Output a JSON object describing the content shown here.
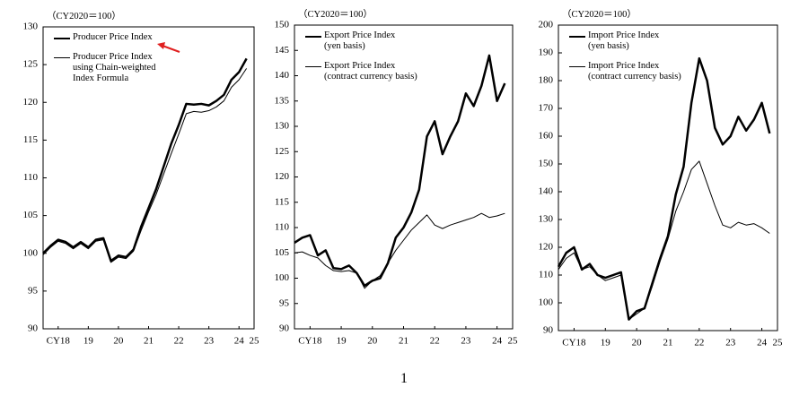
{
  "page_number": "1",
  "chart_data": [
    {
      "type": "line",
      "unit_label": "（CY2020＝100）",
      "x": [
        2018,
        2018.25,
        2018.5,
        2018.75,
        2019,
        2019.25,
        2019.5,
        2019.75,
        2020,
        2020.25,
        2020.5,
        2020.75,
        2021,
        2021.25,
        2021.5,
        2021.75,
        2022,
        2022.25,
        2022.5,
        2022.75,
        2023,
        2023.25,
        2023.5,
        2023.75,
        2024,
        2024.25,
        2024.5,
        2024.75
      ],
      "xlim": [
        2018,
        2025
      ],
      "xticks": [
        {
          "value": 2018.5,
          "label": "CY18"
        },
        {
          "value": 2019.5,
          "label": "19"
        },
        {
          "value": 2020.5,
          "label": "20"
        },
        {
          "value": 2021.5,
          "label": "21"
        },
        {
          "value": 2022.5,
          "label": "22"
        },
        {
          "value": 2023.5,
          "label": "23"
        },
        {
          "value": 2024.5,
          "label": "24"
        },
        {
          "value": 2025,
          "label": "25"
        }
      ],
      "ylim": [
        90,
        130
      ],
      "yticks": [
        90,
        95,
        100,
        105,
        110,
        115,
        120,
        125,
        130
      ],
      "series": [
        {
          "name": "Producer Price Index",
          "color": "#000000",
          "width": 2.5,
          "values": [
            100,
            101,
            101.8,
            101.5,
            100.8,
            101.5,
            100.8,
            101.8,
            102,
            99,
            99.7,
            99.5,
            100.5,
            103.5,
            106,
            108.5,
            111.5,
            114.5,
            117,
            119.8,
            119.7,
            119.8,
            119.6,
            120.2,
            121,
            123,
            124,
            125.8
          ]
        },
        {
          "name": "Producer Price Index\nusing Chain-weighted\nIndex Formula",
          "color": "#000000",
          "width": 1,
          "values": [
            99.8,
            100.8,
            101.6,
            101.3,
            100.6,
            101.3,
            100.6,
            101.6,
            101.8,
            98.8,
            99.5,
            99.3,
            100.3,
            103,
            105.5,
            107.8,
            110.5,
            113.2,
            115.8,
            118.5,
            118.8,
            118.7,
            118.9,
            119.4,
            120.2,
            122,
            123,
            124.5
          ]
        }
      ]
    },
    {
      "type": "line",
      "unit_label": "（CY2020＝100）",
      "x": [
        2018,
        2018.25,
        2018.5,
        2018.75,
        2019,
        2019.25,
        2019.5,
        2019.75,
        2020,
        2020.25,
        2020.5,
        2020.75,
        2021,
        2021.25,
        2021.5,
        2021.75,
        2022,
        2022.25,
        2022.5,
        2022.75,
        2023,
        2023.25,
        2023.5,
        2023.75,
        2024,
        2024.25,
        2024.5,
        2024.75
      ],
      "xlim": [
        2018,
        2025
      ],
      "xticks": [
        {
          "value": 2018.5,
          "label": "CY18"
        },
        {
          "value": 2019.5,
          "label": "19"
        },
        {
          "value": 2020.5,
          "label": "20"
        },
        {
          "value": 2021.5,
          "label": "21"
        },
        {
          "value": 2022.5,
          "label": "22"
        },
        {
          "value": 2023.5,
          "label": "23"
        },
        {
          "value": 2024.5,
          "label": "24"
        },
        {
          "value": 2025,
          "label": "25"
        }
      ],
      "ylim": [
        90,
        150
      ],
      "yticks": [
        90,
        95,
        100,
        105,
        110,
        115,
        120,
        125,
        130,
        135,
        140,
        145,
        150
      ],
      "series": [
        {
          "name": "Export Price Index\n(yen basis)",
          "color": "#000000",
          "width": 2.5,
          "values": [
            107,
            108,
            108.5,
            104.5,
            105.5,
            102,
            101.8,
            102.5,
            101,
            98.5,
            99.5,
            100,
            103,
            108,
            110,
            113,
            117.5,
            128,
            131,
            124.5,
            128,
            131,
            136.5,
            134,
            138,
            144,
            135,
            138.5
          ]
        },
        {
          "name": "Export Price Index\n(contract currency basis)",
          "color": "#000000",
          "width": 1,
          "values": [
            105,
            105.2,
            104.5,
            104,
            102.5,
            101.5,
            101.3,
            101.5,
            101,
            98,
            99.5,
            100.5,
            103,
            105.5,
            107.5,
            109.5,
            111,
            112.5,
            110.5,
            109.8,
            110.5,
            111,
            111.5,
            112,
            112.8,
            112,
            112.3,
            112.8
          ]
        }
      ]
    },
    {
      "type": "line",
      "unit_label": "（CY2020＝100）",
      "x": [
        2018,
        2018.25,
        2018.5,
        2018.75,
        2019,
        2019.25,
        2019.5,
        2019.75,
        2020,
        2020.25,
        2020.5,
        2020.75,
        2021,
        2021.25,
        2021.5,
        2021.75,
        2022,
        2022.25,
        2022.5,
        2022.75,
        2023,
        2023.25,
        2023.5,
        2023.75,
        2024,
        2024.25,
        2024.5,
        2024.75
      ],
      "xlim": [
        2018,
        2025
      ],
      "xticks": [
        {
          "value": 2018.5,
          "label": "CY18"
        },
        {
          "value": 2019.5,
          "label": "19"
        },
        {
          "value": 2020.5,
          "label": "20"
        },
        {
          "value": 2021.5,
          "label": "21"
        },
        {
          "value": 2022.5,
          "label": "22"
        },
        {
          "value": 2023.5,
          "label": "23"
        },
        {
          "value": 2024.5,
          "label": "24"
        },
        {
          "value": 2025,
          "label": "25"
        }
      ],
      "ylim": [
        90,
        200
      ],
      "yticks": [
        90,
        100,
        110,
        120,
        130,
        140,
        150,
        160,
        170,
        180,
        190,
        200
      ],
      "series": [
        {
          "name": "Import Price Index\n(yen basis)",
          "color": "#000000",
          "width": 2.5,
          "values": [
            113,
            118,
            120,
            112,
            114,
            110,
            109,
            110,
            111,
            94,
            97,
            98,
            107,
            116,
            124,
            139,
            149,
            172,
            188,
            180,
            163,
            157,
            160,
            167,
            162,
            166,
            172,
            161
          ]
        },
        {
          "name": "Import Price Index\n(contract currency basis)",
          "color": "#000000",
          "width": 1,
          "values": [
            112,
            116,
            118,
            112,
            113,
            110,
            108,
            109,
            110,
            94,
            96,
            98,
            106,
            115,
            123,
            133,
            140,
            148,
            151,
            143,
            135,
            128,
            127,
            129,
            128,
            128.5,
            127,
            125
          ]
        }
      ]
    }
  ]
}
